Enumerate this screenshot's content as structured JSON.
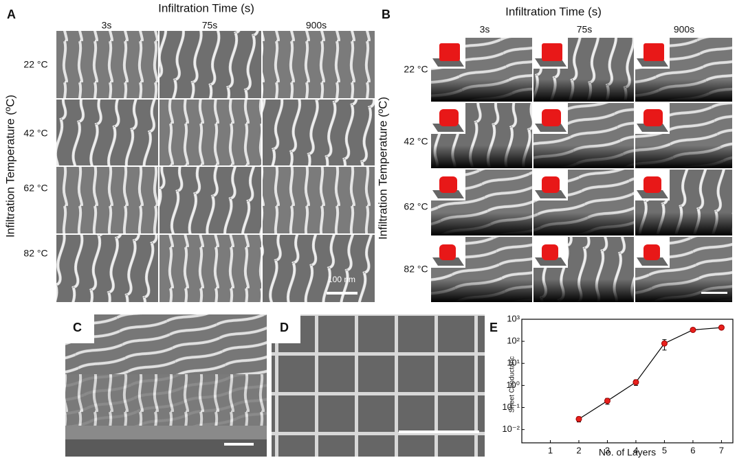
{
  "panels": {
    "A": {
      "label": "A",
      "column_title": "Infiltration Time (s)",
      "row_title": "Infiltration Temperature (ºC)",
      "columns": [
        "3s",
        "75s",
        "900s"
      ],
      "rows": [
        "22 °C",
        "42 °C",
        "62 °C",
        "82 °C"
      ],
      "scale_bar": "100 nm"
    },
    "B": {
      "label": "B",
      "column_title": "Infiltration Time (s)",
      "row_title": "Infiltration Temperature (ºC)",
      "columns": [
        "3s",
        "75s",
        "900s"
      ],
      "rows": [
        "22 °C",
        "42 °C",
        "62 °C",
        "82 °C"
      ]
    },
    "C": {
      "label": "C"
    },
    "D": {
      "label": "D"
    }
  },
  "chart_data": {
    "type": "line",
    "label": "E",
    "x_label": "No. of Layers",
    "y_label": "Sheet Conductanc",
    "x": [
      2,
      3,
      4,
      5,
      6,
      7
    ],
    "series": [
      {
        "color": "#e8201c",
        "values": [
          0.03,
          0.2,
          1.4,
          80,
          330,
          420
        ],
        "errors": [
          0.008,
          0.06,
          0.4,
          40,
          40,
          80
        ]
      }
    ],
    "xlim": [
      0,
      7.4
    ],
    "xticks": [
      1,
      2,
      3,
      4,
      5,
      6,
      7
    ],
    "ylim": [
      0.0025,
      1000
    ],
    "log_scale": true,
    "yticks": [
      {
        "value": 0.01,
        "label": "10⁻²"
      },
      {
        "value": 0.1,
        "label": "10⁻¹"
      },
      {
        "value": 1,
        "label": "10⁰"
      },
      {
        "value": 10,
        "label": "10¹"
      },
      {
        "value": 100,
        "label": "10²"
      },
      {
        "value": 1000,
        "label": "10³"
      }
    ]
  }
}
